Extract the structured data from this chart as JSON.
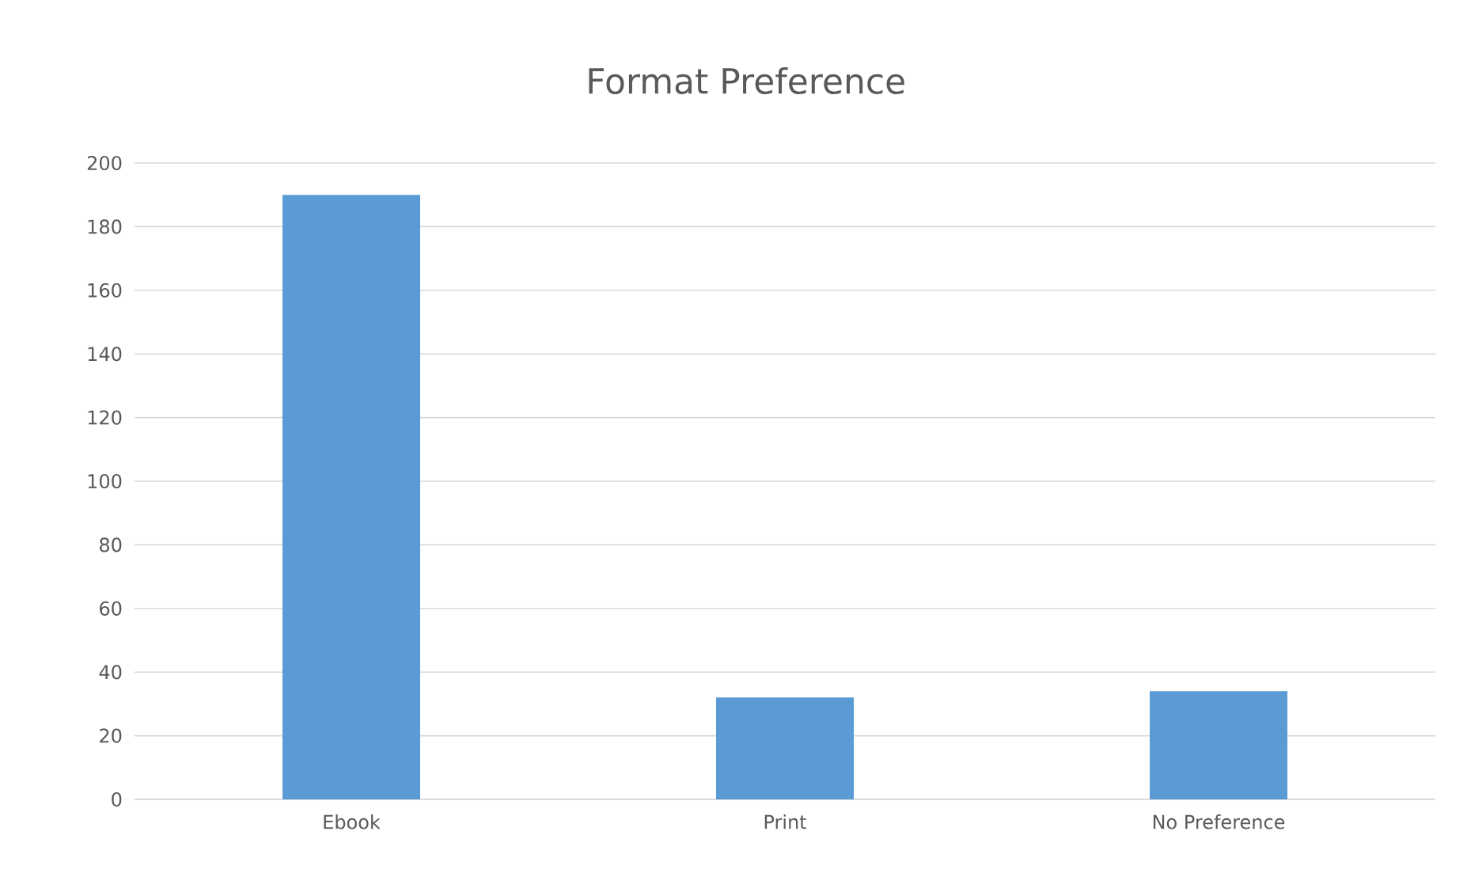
{
  "chart_data": {
    "type": "bar",
    "title": "Format Preference",
    "categories": [
      "Ebook",
      "Print",
      "No Preference"
    ],
    "values": [
      190,
      32,
      34
    ],
    "color": "#5b9bd5",
    "ylim": [
      0,
      200
    ],
    "yticks": [
      0,
      20,
      40,
      60,
      80,
      100,
      120,
      140,
      160,
      180,
      200
    ],
    "grid": "y"
  }
}
